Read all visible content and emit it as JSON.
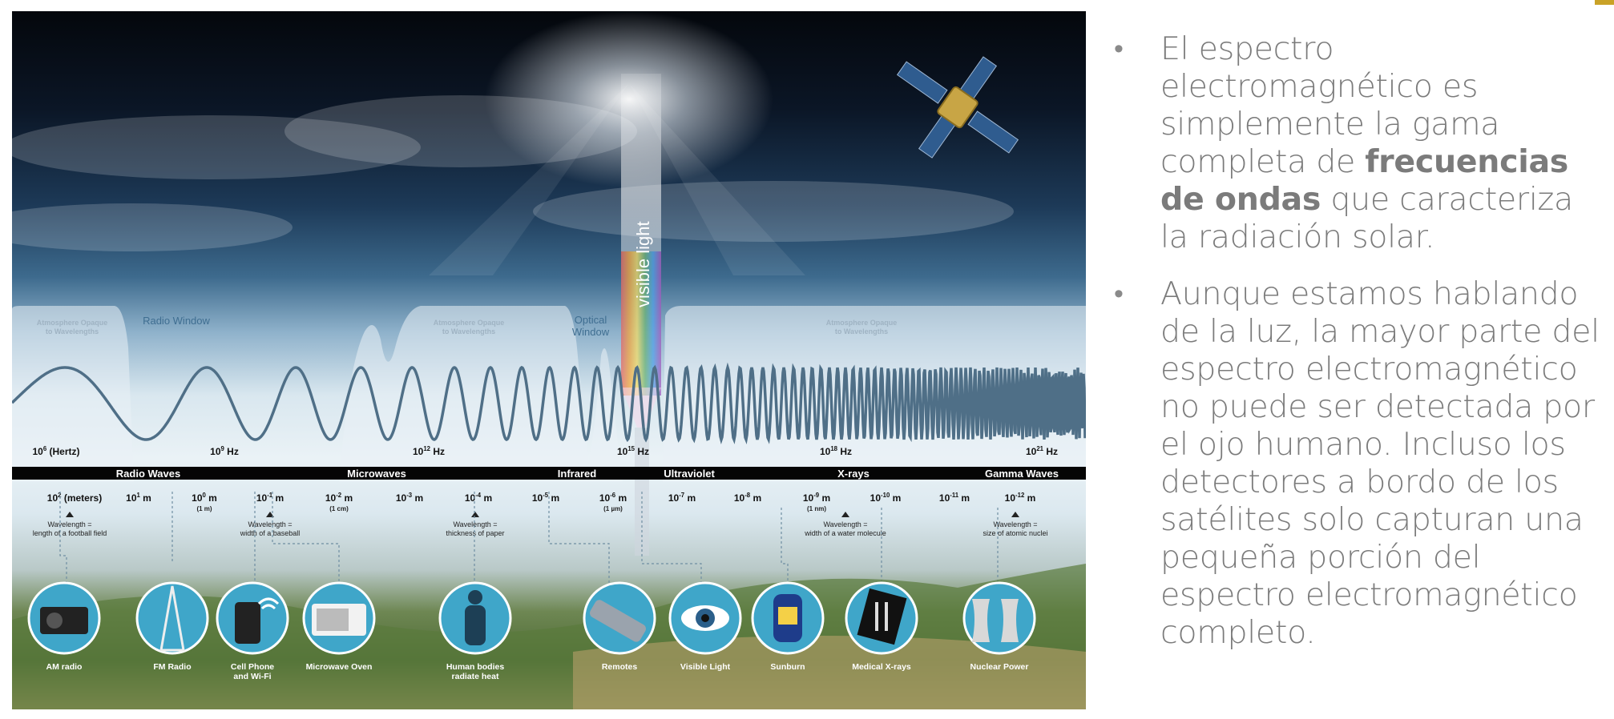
{
  "figure": {
    "band_labels": [
      "Radio Waves",
      "Microwaves",
      "Infrared",
      "Ultraviolet",
      "X-rays",
      "Gamma Waves"
    ],
    "frequency_labels": [
      {
        "base": "10",
        "exp": "6",
        "unit": " (Hertz)"
      },
      {
        "base": "10",
        "exp": "9",
        "unit": " Hz"
      },
      {
        "base": "10",
        "exp": "12",
        "unit": " Hz"
      },
      {
        "base": "10",
        "exp": "15",
        "unit": " Hz"
      },
      {
        "base": "10",
        "exp": "18",
        "unit": " Hz"
      },
      {
        "base": "10",
        "exp": "21",
        "unit": " Hz"
      }
    ],
    "wavelength_labels": [
      {
        "base": "10",
        "exp": "2",
        "unit": " (meters)",
        "sub": ""
      },
      {
        "base": "10",
        "exp": "1",
        "unit": " m",
        "sub": ""
      },
      {
        "base": "10",
        "exp": "0",
        "unit": " m",
        "sub": "(1 m)"
      },
      {
        "base": "10",
        "exp": "-1",
        "unit": " m",
        "sub": ""
      },
      {
        "base": "10",
        "exp": "-2",
        "unit": " m",
        "sub": "(1 cm)"
      },
      {
        "base": "10",
        "exp": "-3",
        "unit": " m",
        "sub": ""
      },
      {
        "base": "10",
        "exp": "-4",
        "unit": " m",
        "sub": ""
      },
      {
        "base": "10",
        "exp": "-5",
        "unit": " m",
        "sub": ""
      },
      {
        "base": "10",
        "exp": "-6",
        "unit": " m",
        "sub": "(1 µm)"
      },
      {
        "base": "10",
        "exp": "-7",
        "unit": " m",
        "sub": ""
      },
      {
        "base": "10",
        "exp": "-8",
        "unit": " m",
        "sub": ""
      },
      {
        "base": "10",
        "exp": "-9",
        "unit": " m",
        "sub": "(1 nm)"
      },
      {
        "base": "10",
        "exp": "-10",
        "unit": " m",
        "sub": ""
      },
      {
        "base": "10",
        "exp": "-11",
        "unit": " m",
        "sub": ""
      },
      {
        "base": "10",
        "exp": "-12",
        "unit": " m",
        "sub": ""
      }
    ],
    "window_labels": {
      "opaque_1": [
        "Atmosphere Opaque",
        "to Wavelengths"
      ],
      "radio_window": "Radio Window",
      "opaque_2": [
        "Atmosphere Opaque",
        "to Wavelengths"
      ],
      "optical_window": [
        "Optical",
        "Window"
      ],
      "opaque_3": [
        "Atmosphere Opaque",
        "to Wavelengths"
      ]
    },
    "visible_light_label": "visible light",
    "comparisons": [
      [
        "Wavelength =",
        "length of a football field"
      ],
      [
        "Wavelength =",
        "width of a baseball"
      ],
      [
        "Wavelength =",
        "thickness of paper"
      ],
      [
        "Wavelength =",
        "width of a water molecule"
      ],
      [
        "Wavelength =",
        "size of atomic nuclei"
      ]
    ],
    "sources": [
      {
        "icon": "radio-icon",
        "label": [
          "AM radio"
        ]
      },
      {
        "icon": "radio-tower-icon",
        "label": [
          "FM Radio"
        ]
      },
      {
        "icon": "cell-phone-icon",
        "label": [
          "Cell Phone",
          "and Wi-Fi"
        ]
      },
      {
        "icon": "microwave-oven-icon",
        "label": [
          "Microwave Oven"
        ]
      },
      {
        "icon": "human-body-icon",
        "label": [
          "Human bodies",
          "radiate heat"
        ]
      },
      {
        "icon": "remote-control-icon",
        "label": [
          "Remotes"
        ]
      },
      {
        "icon": "eye-icon",
        "label": [
          "Visible Light"
        ]
      },
      {
        "icon": "sunscreen-icon",
        "label": [
          "Sunburn"
        ]
      },
      {
        "icon": "xray-film-icon",
        "label": [
          "Medical X-rays"
        ]
      },
      {
        "icon": "nuclear-plant-icon",
        "label": [
          "Nuclear Power"
        ]
      }
    ]
  },
  "text": {
    "bullet_char": "•",
    "bullet1": {
      "before": "El espectro electromagnético es simplemente la gama completa de ",
      "bold": "frecuencias de ondas",
      "after": " que caracteriza la radiación solar."
    },
    "bullet2": "Aunque estamos hablando de la luz, la mayor parte del espectro electromagnético no puede ser detectada por el ojo humano. Incluso los detectores a bordo de los satélites solo capturan una pequeña porción del espectro electromagnético completo."
  },
  "colors": {
    "wave": "#4f6f87",
    "band_strip": "#050505",
    "icon_circle": "#3fa6c9",
    "text": "#7b7b7b",
    "accent": "#c9a227"
  }
}
